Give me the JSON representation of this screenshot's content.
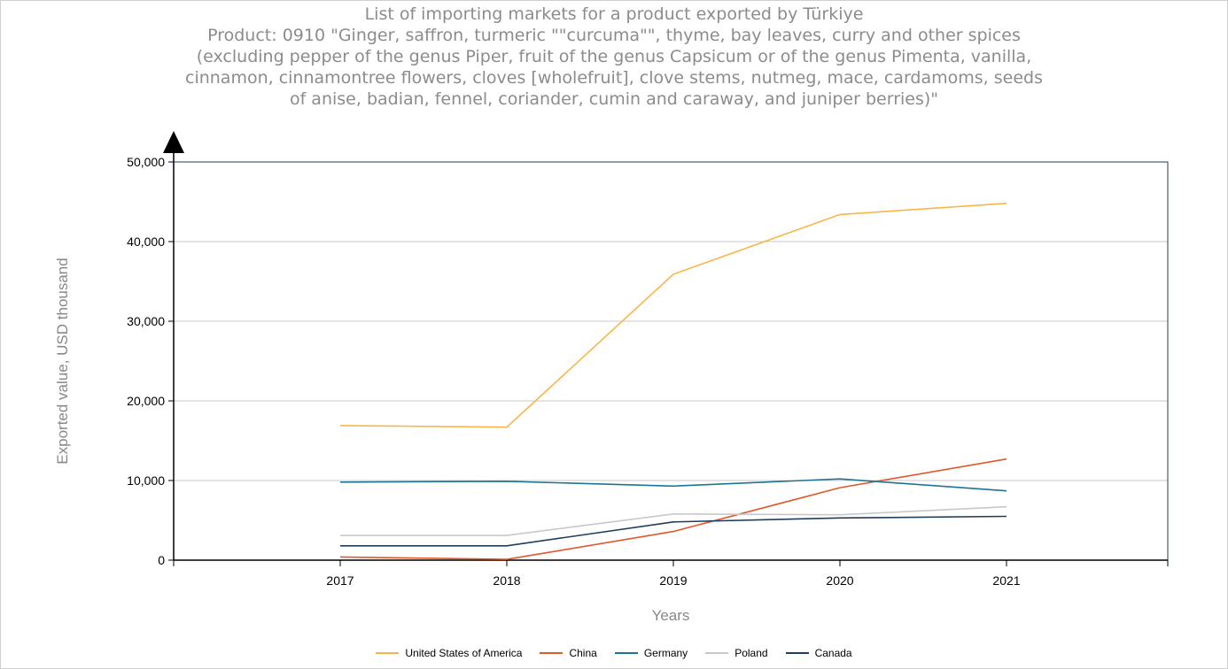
{
  "chart_data": {
    "type": "line",
    "title_lines": [
      "List of importing markets for a product exported by Türkiye",
      "Product: 0910 \"Ginger, saffron, turmeric \"\"curcuma\"\", thyme, bay leaves, curry and other spices",
      "(excluding pepper of the genus Piper, fruit of the genus Capsicum or of the genus Pimenta, vanilla,",
      "cinnamon, cinnamontree flowers, cloves [wholefruit], clove stems, nutmeg, mace, cardamoms, seeds",
      "of anise, badian, fennel, coriander, cumin and caraway, and juniper berries)\""
    ],
    "xlabel": "Years",
    "ylabel": "Exported value, USD thousand",
    "categories": [
      "2017",
      "2018",
      "2019",
      "2020",
      "2021"
    ],
    "ylim": [
      0,
      50000
    ],
    "yticks": [
      "0",
      "10,000",
      "20,000",
      "30,000",
      "40,000",
      "50,000"
    ],
    "grid": true,
    "legend_position": "bottom",
    "series": [
      {
        "name": "United States of America",
        "color": "#f9b54a",
        "values": [
          16900,
          16700,
          35900,
          43400,
          44800
        ]
      },
      {
        "name": "China",
        "color": "#e0582a",
        "values": [
          400,
          100,
          3600,
          9100,
          12700
        ]
      },
      {
        "name": "Germany",
        "color": "#1d7596",
        "values": [
          9800,
          9900,
          9300,
          10200,
          8700
        ]
      },
      {
        "name": "Poland",
        "color": "#c8c8c8",
        "values": [
          3100,
          3100,
          5800,
          5700,
          6700
        ]
      },
      {
        "name": "Canada",
        "color": "#1f3d5c",
        "values": [
          1800,
          1800,
          4800,
          5300,
          5500
        ]
      }
    ]
  }
}
